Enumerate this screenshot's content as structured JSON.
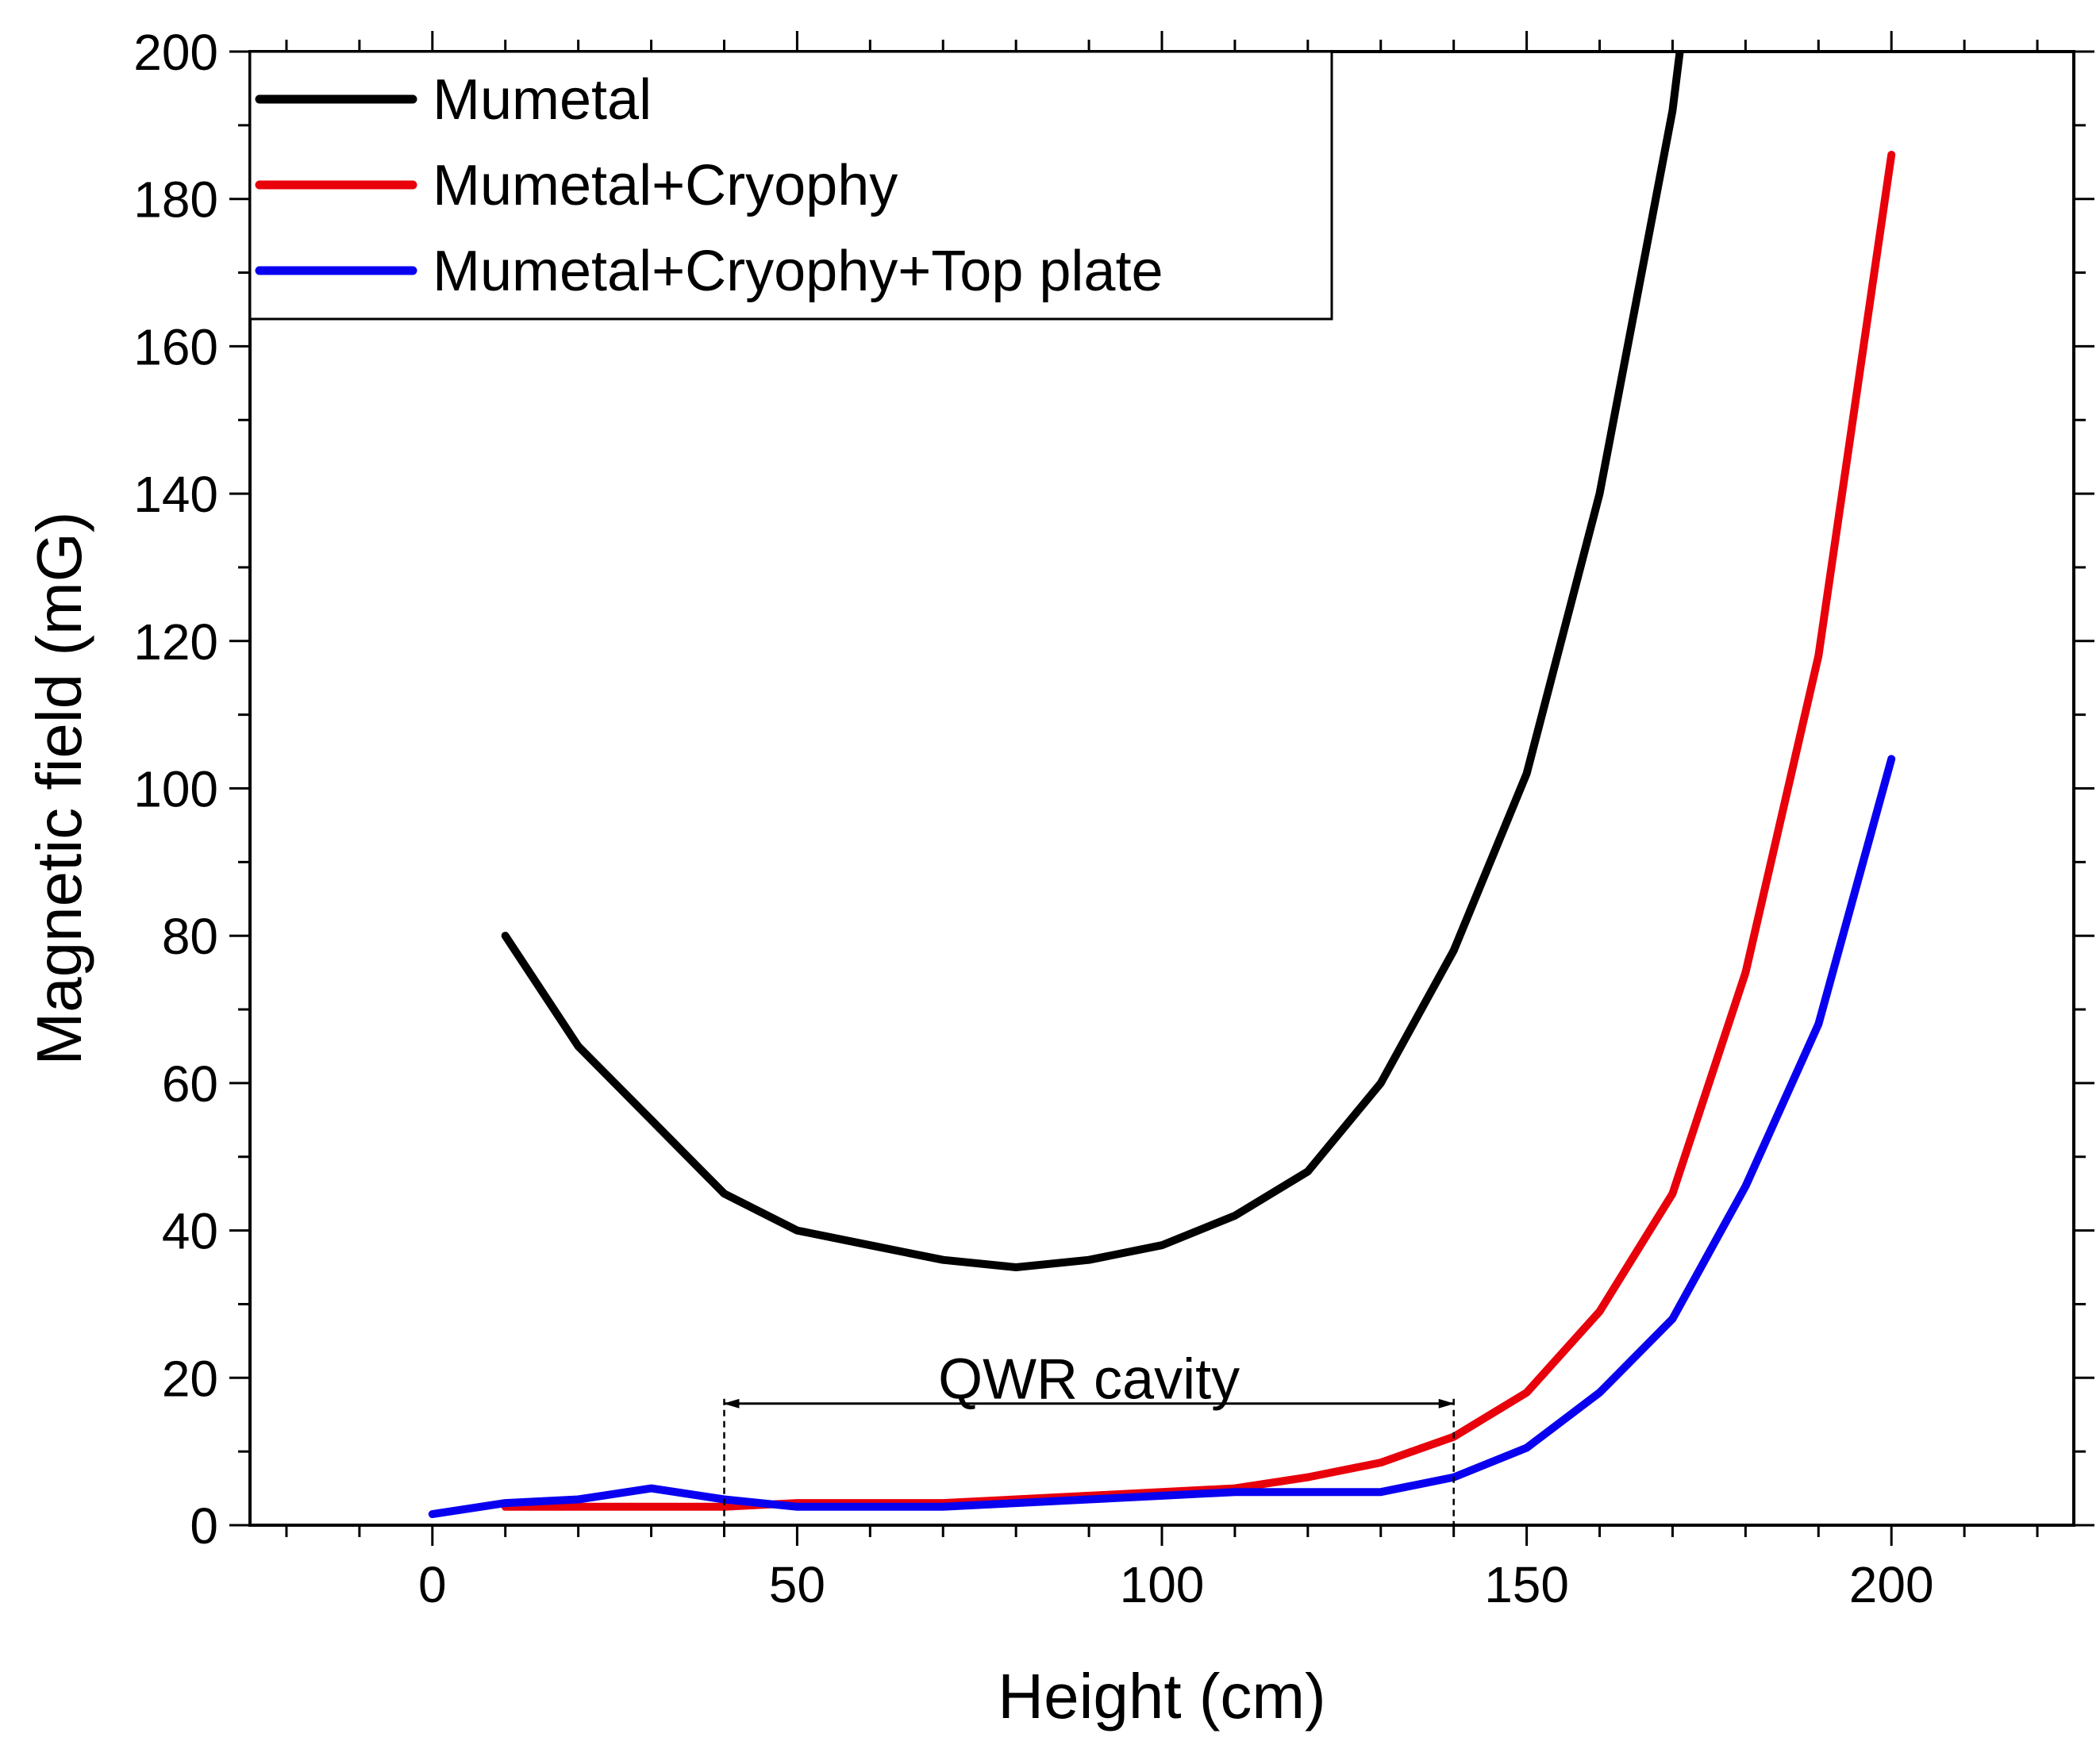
{
  "chart_data": {
    "type": "line",
    "title": "",
    "xlabel": "Height (cm)",
    "ylabel": "Magnetic field (mG)",
    "xlim": [
      -25,
      225
    ],
    "ylim": [
      0,
      200
    ],
    "x_ticks": [
      0,
      50,
      100,
      150,
      200
    ],
    "y_ticks": [
      0,
      20,
      40,
      60,
      80,
      100,
      120,
      140,
      160,
      180,
      200
    ],
    "x_tick_labels": [
      "0",
      "50",
      "100",
      "150",
      "200"
    ],
    "y_tick_labels": [
      "0",
      "20",
      "40",
      "60",
      "80",
      "100",
      "120",
      "140",
      "160",
      "180",
      "200"
    ],
    "grid": false,
    "legend_position": "top-left",
    "series": [
      {
        "name": "Mumetal",
        "color": "#000000",
        "x": [
          10,
          20,
          30,
          40,
          50,
          60,
          70,
          80,
          90,
          100,
          110,
          120,
          130,
          140,
          150,
          160,
          170,
          171
        ],
        "y": [
          80,
          65,
          55,
          45,
          40,
          38,
          36,
          35,
          36,
          38,
          42,
          48,
          60,
          78,
          102,
          140,
          192,
          200
        ]
      },
      {
        "name": "Mumetal+Cryophy",
        "color": "#e8000b",
        "x": [
          10,
          20,
          30,
          40,
          50,
          60,
          70,
          80,
          90,
          100,
          110,
          120,
          130,
          140,
          150,
          160,
          170,
          180,
          190,
          200
        ],
        "y": [
          2.5,
          2.5,
          2.5,
          2.5,
          3,
          3,
          3,
          3.5,
          4,
          4.5,
          5,
          6.5,
          8.5,
          12,
          18,
          29,
          45,
          75,
          118,
          186
        ]
      },
      {
        "name": "Mumetal+Cryophy+Top plate",
        "color": "#0a00f0",
        "x": [
          0,
          10,
          20,
          30,
          40,
          50,
          60,
          70,
          80,
          90,
          100,
          110,
          120,
          130,
          140,
          150,
          160,
          170,
          180,
          190,
          200
        ],
        "y": [
          1.5,
          3,
          3.5,
          5,
          3.5,
          2.5,
          2.5,
          2.5,
          3,
          3.5,
          4,
          4.5,
          4.5,
          4.5,
          6.5,
          10.5,
          18,
          28,
          46,
          68,
          104
        ]
      }
    ],
    "annotations": [
      {
        "text": "QWR cavity",
        "arrow_from_x": 40,
        "arrow_to_x": 140,
        "arrow_y": 16.5,
        "text_y": 20
      }
    ]
  }
}
